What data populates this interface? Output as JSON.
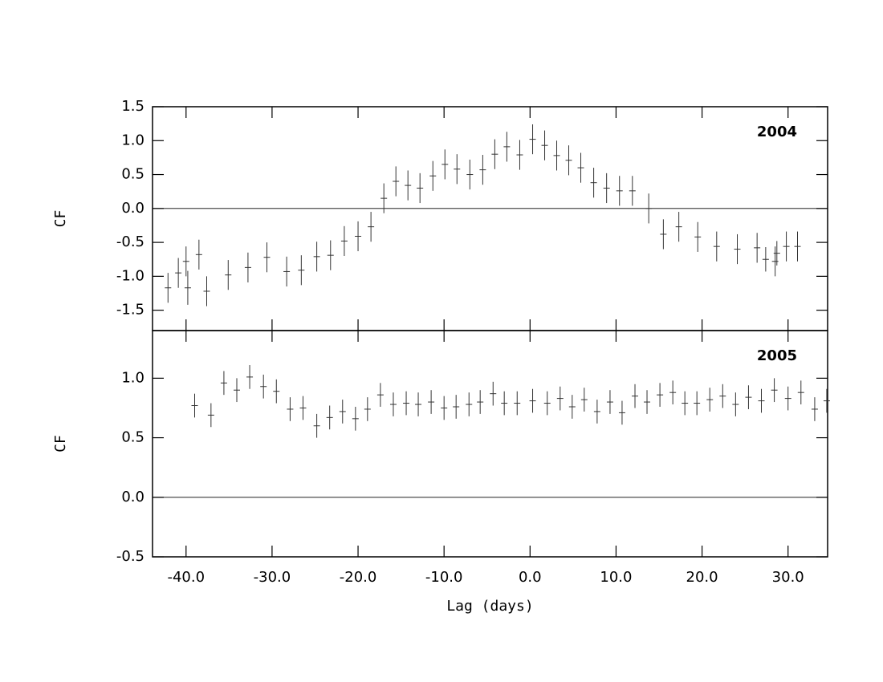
{
  "chart_data": [
    {
      "type": "errorbar",
      "annotation": "2004",
      "ylabel": "CF",
      "color": "#333333",
      "reference_line": 0,
      "xlim": [
        -43.9,
        34.6
      ],
      "ylim": [
        -1.8,
        1.5
      ],
      "yticks": [
        {
          "value": 1.5,
          "label": "1.5"
        },
        {
          "value": 1,
          "label": "1.0"
        },
        {
          "value": 0.5,
          "label": "0.5"
        },
        {
          "value": 0,
          "label": "0.0"
        },
        {
          "value": -0.5,
          "label": "-0.5"
        },
        {
          "value": -1,
          "label": "-1.0"
        },
        {
          "value": -1.5,
          "label": "-1.5"
        }
      ],
      "x": [
        -42.1,
        -40.9,
        -40.0,
        -39.8,
        -38.5,
        -37.6,
        -35.1,
        -32.8,
        -30.6,
        -28.3,
        -26.6,
        -24.8,
        -23.2,
        -21.6,
        -20.0,
        -18.5,
        -17.0,
        -15.6,
        -14.2,
        -12.8,
        -11.3,
        -9.9,
        -8.5,
        -7.0,
        -5.5,
        -4.1,
        -2.7,
        -1.2,
        0.3,
        1.7,
        3.1,
        4.5,
        5.9,
        7.4,
        8.9,
        10.4,
        11.9,
        13.8,
        15.5,
        17.3,
        19.5,
        21.7,
        24.1,
        26.4,
        27.4,
        28.5,
        28.7,
        29.8,
        31.1
      ],
      "values": [
        -1.17,
        -0.95,
        -0.78,
        -1.17,
        -0.68,
        -1.22,
        -0.98,
        -0.87,
        -0.72,
        -0.93,
        -0.91,
        -0.71,
        -0.69,
        -0.48,
        -0.41,
        -0.27,
        0.15,
        0.4,
        0.34,
        0.3,
        0.48,
        0.65,
        0.58,
        0.5,
        0.57,
        0.8,
        0.91,
        0.79,
        1.02,
        0.93,
        0.78,
        0.71,
        0.6,
        0.38,
        0.3,
        0.26,
        0.26,
        0.0,
        -0.38,
        -0.27,
        -0.42,
        -0.56,
        -0.6,
        -0.58,
        -0.75,
        -0.78,
        -0.66,
        -0.56,
        -0.56
      ],
      "errors": [
        0.22,
        0.22,
        0.22,
        0.25,
        0.22,
        0.22,
        0.22,
        0.22,
        0.22,
        0.22,
        0.22,
        0.22,
        0.22,
        0.22,
        0.22,
        0.22,
        0.22,
        0.22,
        0.22,
        0.22,
        0.22,
        0.22,
        0.22,
        0.22,
        0.22,
        0.22,
        0.22,
        0.22,
        0.22,
        0.22,
        0.22,
        0.22,
        0.22,
        0.22,
        0.22,
        0.22,
        0.22,
        0.22,
        0.22,
        0.22,
        0.22,
        0.22,
        0.22,
        0.22,
        0.18,
        0.22,
        0.18,
        0.22,
        0.22
      ]
    },
    {
      "type": "errorbar",
      "annotation": "2005",
      "ylabel": "CF",
      "xlabel": "Lag (days)",
      "color": "#333333",
      "reference_line": 0,
      "xlim": [
        -43.9,
        34.6
      ],
      "ylim": [
        -0.5,
        1.4
      ],
      "xticks": [
        {
          "value": -40,
          "label": "-40.0"
        },
        {
          "value": -30,
          "label": "-30.0"
        },
        {
          "value": -20,
          "label": "-20.0"
        },
        {
          "value": -10,
          "label": "-10.0"
        },
        {
          "value": 0,
          "label": "0.0"
        },
        {
          "value": 10,
          "label": "10.0"
        },
        {
          "value": 20,
          "label": "20.0"
        },
        {
          "value": 30,
          "label": "30.0"
        }
      ],
      "yticks": [
        {
          "value": 1,
          "label": "1.0"
        },
        {
          "value": 0.5,
          "label": "0.5"
        },
        {
          "value": 0,
          "label": "0.0"
        },
        {
          "value": -0.5,
          "label": "-0.5"
        }
      ],
      "x": [
        -39.0,
        -37.1,
        -35.6,
        -34.1,
        -32.6,
        -31.0,
        -29.5,
        -27.9,
        -26.4,
        -24.8,
        -23.3,
        -21.8,
        -20.3,
        -18.9,
        -17.4,
        -15.9,
        -14.4,
        -13.0,
        -11.5,
        -10.0,
        -8.6,
        -7.1,
        -5.8,
        -4.3,
        -3.0,
        -1.5,
        0.3,
        2.0,
        3.5,
        4.9,
        6.3,
        7.8,
        9.3,
        10.7,
        12.2,
        13.6,
        15.1,
        16.6,
        18.0,
        19.4,
        20.9,
        22.4,
        23.9,
        25.4,
        26.9,
        28.4,
        30.0,
        31.5,
        33.1,
        34.5
      ],
      "values": [
        0.77,
        0.69,
        0.96,
        0.9,
        1.01,
        0.93,
        0.89,
        0.74,
        0.75,
        0.6,
        0.67,
        0.72,
        0.66,
        0.74,
        0.86,
        0.78,
        0.79,
        0.78,
        0.8,
        0.75,
        0.76,
        0.78,
        0.8,
        0.87,
        0.79,
        0.79,
        0.81,
        0.79,
        0.83,
        0.76,
        0.82,
        0.72,
        0.8,
        0.71,
        0.85,
        0.8,
        0.86,
        0.88,
        0.79,
        0.79,
        0.82,
        0.85,
        0.78,
        0.84,
        0.81,
        0.9,
        0.83,
        0.88,
        0.74,
        0.81
      ],
      "errors": [
        0.1,
        0.1,
        0.1,
        0.1,
        0.1,
        0.1,
        0.1,
        0.1,
        0.1,
        0.1,
        0.1,
        0.1,
        0.1,
        0.1,
        0.1,
        0.1,
        0.1,
        0.1,
        0.1,
        0.1,
        0.1,
        0.1,
        0.1,
        0.1,
        0.1,
        0.1,
        0.1,
        0.1,
        0.1,
        0.1,
        0.1,
        0.1,
        0.1,
        0.1,
        0.1,
        0.1,
        0.1,
        0.1,
        0.1,
        0.1,
        0.1,
        0.1,
        0.1,
        0.1,
        0.1,
        0.1,
        0.1,
        0.1,
        0.1,
        0.1
      ]
    }
  ]
}
